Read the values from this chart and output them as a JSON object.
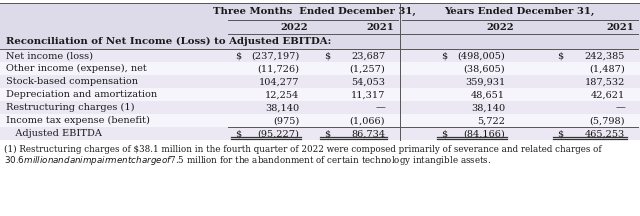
{
  "header_group1": "Three Months  Ended December 31,",
  "header_group2": "Years Ended December 31,",
  "col_headers": [
    "2022",
    "2021",
    "2022",
    "2021"
  ],
  "section_title": "Reconciliation of Net Income (Loss) to Adjusted EBITDA:",
  "rows": [
    {
      "label": "Net income (loss)",
      "dollar_signs": [
        true,
        true,
        true,
        true
      ],
      "values": [
        "(237,197)",
        "23,687",
        "(498,005)",
        "242,385"
      ],
      "bottom_border": false
    },
    {
      "label": "Other income (expense), net",
      "dollar_signs": [
        false,
        false,
        false,
        false
      ],
      "values": [
        "(11,726)",
        "(1,257)",
        "(38,605)",
        "(1,487)"
      ],
      "bottom_border": false
    },
    {
      "label": "Stock-based compensation",
      "dollar_signs": [
        false,
        false,
        false,
        false
      ],
      "values": [
        "104,277",
        "54,053",
        "359,931",
        "187,532"
      ],
      "bottom_border": false
    },
    {
      "label": "Depreciation and amortization",
      "dollar_signs": [
        false,
        false,
        false,
        false
      ],
      "values": [
        "12,254",
        "11,317",
        "48,651",
        "42,621"
      ],
      "bottom_border": false
    },
    {
      "label": "Restructuring charges (1)",
      "dollar_signs": [
        false,
        false,
        false,
        false
      ],
      "values": [
        "38,140",
        "—",
        "38,140",
        "—"
      ],
      "bottom_border": false
    },
    {
      "label": "Income tax expense (benefit)",
      "dollar_signs": [
        false,
        false,
        false,
        false
      ],
      "values": [
        "(975)",
        "(1,066)",
        "5,722",
        "(5,798)"
      ],
      "bottom_border": false
    },
    {
      "label": "   Adjusted EBITDA",
      "dollar_signs": [
        true,
        true,
        true,
        true
      ],
      "values": [
        "(95,227)",
        "86,734",
        "(84,166)",
        "465,253"
      ],
      "bottom_border": true
    }
  ],
  "footnote_line1": "(1) Restructuring charges of $38.1 million in the fourth quarter of 2022 were composed primarily of severance and related charges of",
  "footnote_line2": "$30.6 million and an impairment charge of $7.5 million for the abandonment of certain technology intangible assets.",
  "header_bg": "#dddaea",
  "section_bg": "#dddaea",
  "row_bg_alt": "#ebe8f4",
  "row_bg_white": "#f7f5fc",
  "text_color": "#1a1a1a",
  "font_size": 7.0,
  "header_font_size": 7.2,
  "footnote_font_size": 6.3
}
